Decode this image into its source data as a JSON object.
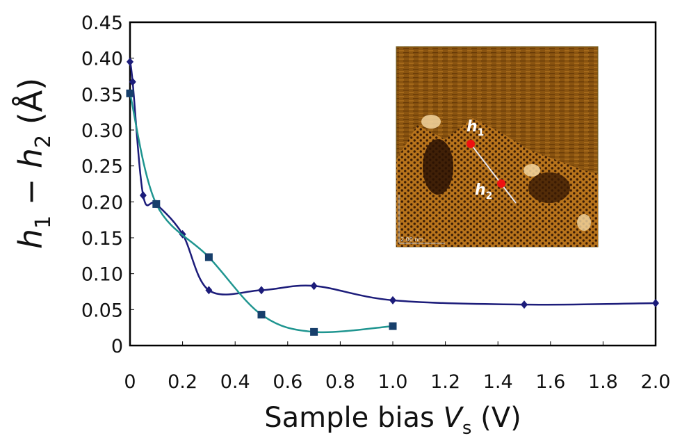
{
  "chart_data": {
    "type": "line",
    "xlabel": [
      "Sample bias ",
      "V",
      "s",
      " (V)"
    ],
    "ylabel": [
      "h",
      "1",
      " − ",
      "h",
      "2",
      " (Å)"
    ],
    "xlim": [
      0,
      2.0
    ],
    "xticks": [
      0,
      0.2,
      0.4,
      0.6,
      0.8,
      {
        "value": 1.0,
        "label": "1.0"
      },
      1.2,
      1.4,
      1.6,
      1.8,
      {
        "value": 2.0,
        "label": "2.0"
      }
    ],
    "ylim": [
      0,
      0.45
    ],
    "yticks": [
      0,
      0.05,
      {
        "value": 0.1,
        "label": "0.10"
      },
      0.15,
      {
        "value": 0.2,
        "label": "0.20"
      },
      0.25,
      {
        "value": 0.3,
        "label": "0.30"
      },
      0.35,
      {
        "value": 0.4,
        "label": "0.40"
      },
      0.45
    ],
    "grid": false,
    "series": [
      {
        "color": "#1c1c7a",
        "marker": "diamond",
        "marker_color": "#1c1c7a",
        "x": [
          0,
          0.01,
          0.05,
          0.1,
          0.2,
          0.3,
          0.5,
          0.7,
          1.0,
          1.5,
          2.0
        ],
        "values": [
          0.395,
          0.367,
          0.209,
          0.197,
          0.155,
          0.077,
          0.077,
          0.083,
          0.063,
          0.057,
          0.059
        ]
      },
      {
        "color": "#1f9590",
        "marker": "square",
        "marker_color": "#173f6b",
        "x": [
          0,
          0.1,
          0.3,
          0.5,
          0.7,
          1.0
        ],
        "values": [
          0.351,
          0.197,
          0.123,
          0.043,
          0.019,
          0.027
        ]
      }
    ],
    "inset": {
      "point_labels": [
        [
          "h",
          "1"
        ],
        [
          "h",
          "2"
        ]
      ],
      "scale_bar": "2.00 nm"
    }
  }
}
